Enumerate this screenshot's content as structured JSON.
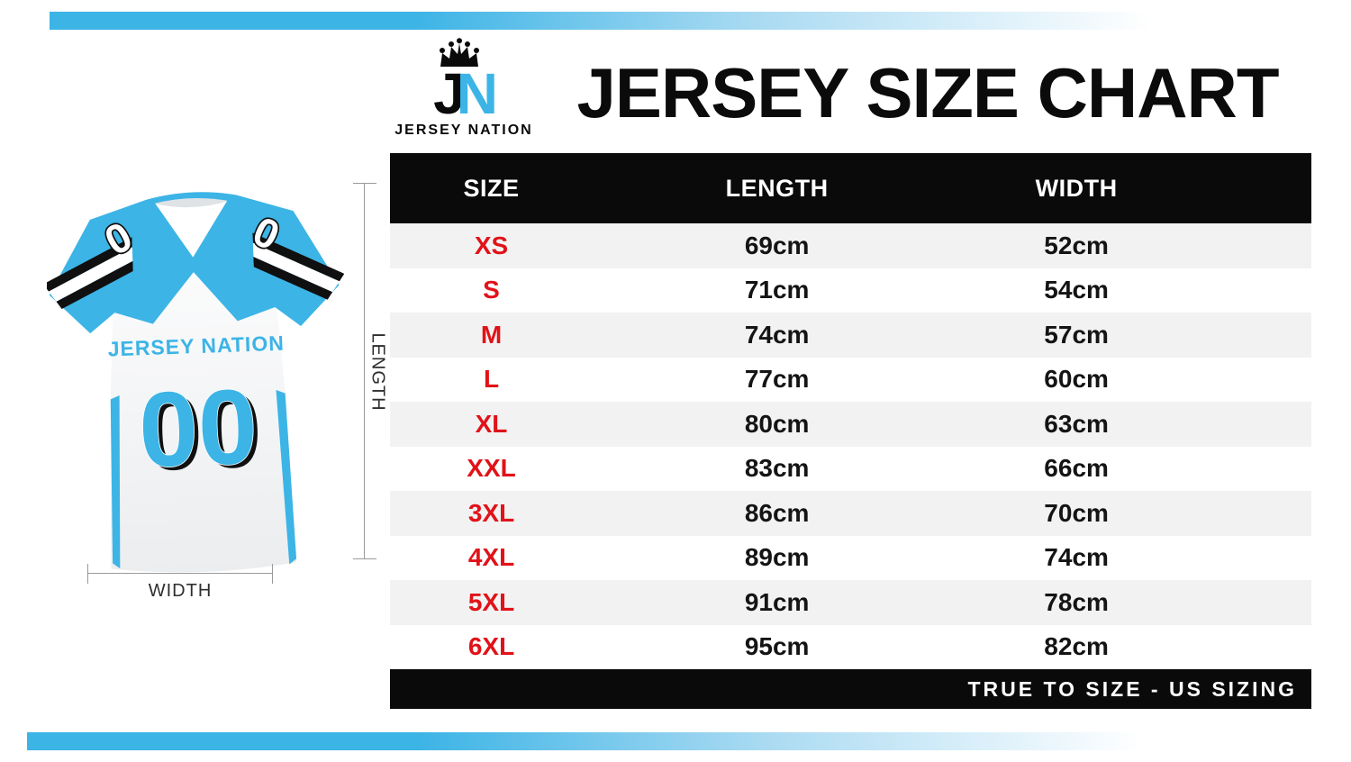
{
  "brand": {
    "initial_j": "J",
    "initial_n": "N",
    "name": "JERSEY NATION"
  },
  "title": "JERSEY SIZE CHART",
  "figure": {
    "chest_brand": "JERSEY NATION",
    "chest_number": "00",
    "shoulder_number": "0",
    "length_label": "LENGTH",
    "width_label": "WIDTH"
  },
  "table": {
    "headers": [
      "SIZE",
      "LENGTH",
      "WIDTH"
    ],
    "rows": [
      {
        "size": "XS",
        "length": "69cm",
        "width": "52cm"
      },
      {
        "size": "S",
        "length": "71cm",
        "width": "54cm"
      },
      {
        "size": "M",
        "length": "74cm",
        "width": "57cm"
      },
      {
        "size": "L",
        "length": "77cm",
        "width": "60cm"
      },
      {
        "size": "XL",
        "length": "80cm",
        "width": "63cm"
      },
      {
        "size": "XXL",
        "length": "83cm",
        "width": "66cm"
      },
      {
        "size": "3XL",
        "length": "86cm",
        "width": "70cm"
      },
      {
        "size": "4XL",
        "length": "89cm",
        "width": "74cm"
      },
      {
        "size": "5XL",
        "length": "91cm",
        "width": "78cm"
      },
      {
        "size": "6XL",
        "length": "95cm",
        "width": "82cm"
      }
    ],
    "footer_note": "TRUE TO SIZE - US SIZING"
  },
  "colors": {
    "accent_blue": "#3CB4E6",
    "size_red": "#E11219",
    "black": "#0A0A0A",
    "row_gray": "#F2F2F2"
  },
  "chart_data": {
    "type": "table",
    "title": "JERSEY SIZE CHART",
    "columns": [
      "SIZE",
      "LENGTH",
      "WIDTH"
    ],
    "rows": [
      [
        "XS",
        "69cm",
        "52cm"
      ],
      [
        "S",
        "71cm",
        "54cm"
      ],
      [
        "M",
        "74cm",
        "57cm"
      ],
      [
        "L",
        "77cm",
        "60cm"
      ],
      [
        "XL",
        "80cm",
        "63cm"
      ],
      [
        "XXL",
        "83cm",
        "66cm"
      ],
      [
        "3XL",
        "86cm",
        "70cm"
      ],
      [
        "4XL",
        "89cm",
        "74cm"
      ],
      [
        "5XL",
        "91cm",
        "78cm"
      ],
      [
        "6XL",
        "95cm",
        "82cm"
      ]
    ],
    "units": "cm",
    "note": "TRUE TO SIZE - US SIZING"
  }
}
